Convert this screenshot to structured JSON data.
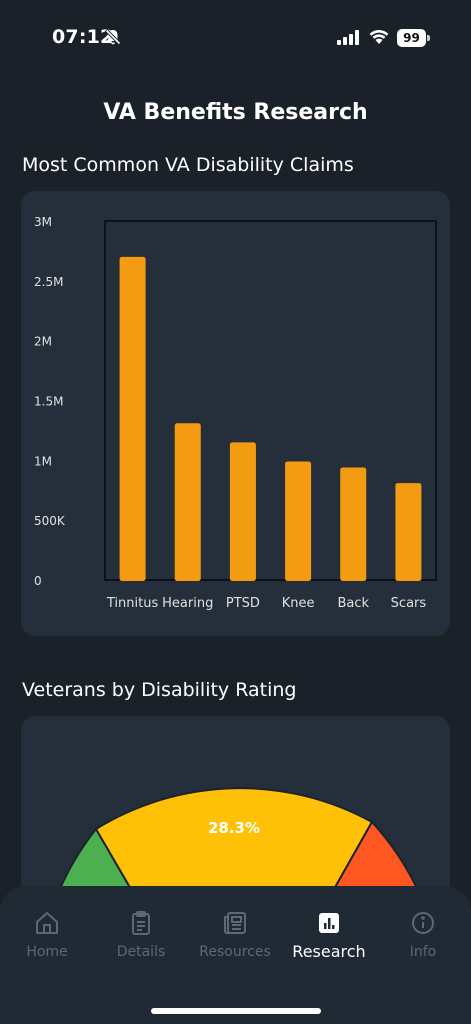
{
  "status_bar": {
    "time": "07:12",
    "battery": "99"
  },
  "page_title": "VA Benefits Research",
  "sections": {
    "claims_title": "Most Common VA Disability Claims",
    "ratings_title": "Veterans by Disability Rating"
  },
  "colors": {
    "background": "#1b2129",
    "card": "#252f3b",
    "bar": "#f39c12",
    "gauge_green": "#4caf50",
    "gauge_yellow": "#ffc107",
    "gauge_orange": "#ff5722",
    "nav_active": "#ffffff",
    "nav_inactive": "#5c6877"
  },
  "chart_data": [
    {
      "type": "bar",
      "title": "Most Common VA Disability Claims",
      "categories": [
        "Tinnitus",
        "Hearing",
        "PTSD",
        "Knee",
        "Back",
        "Scars"
      ],
      "values": [
        2700000,
        1310000,
        1150000,
        990000,
        940000,
        810000
      ],
      "yticks": [
        "0",
        "500K",
        "1M",
        "1.5M",
        "2M",
        "2.5M",
        "3M"
      ],
      "ylim": [
        0,
        3000000
      ],
      "grid": false,
      "legend": "none"
    },
    {
      "type": "pie",
      "title": "Veterans by Disability Rating",
      "slice_labels": [
        "28.3%"
      ],
      "visible_slice_colors": [
        "#4caf50",
        "#ffc107",
        "#ff5722"
      ]
    }
  ],
  "nav": {
    "items": [
      {
        "label": "Home",
        "icon": "home-icon"
      },
      {
        "label": "Details",
        "icon": "clipboard-icon"
      },
      {
        "label": "Resources",
        "icon": "newspaper-icon"
      },
      {
        "label": "Research",
        "icon": "bar-chart-icon"
      },
      {
        "label": "Info",
        "icon": "info-icon"
      }
    ],
    "active": "Research"
  }
}
